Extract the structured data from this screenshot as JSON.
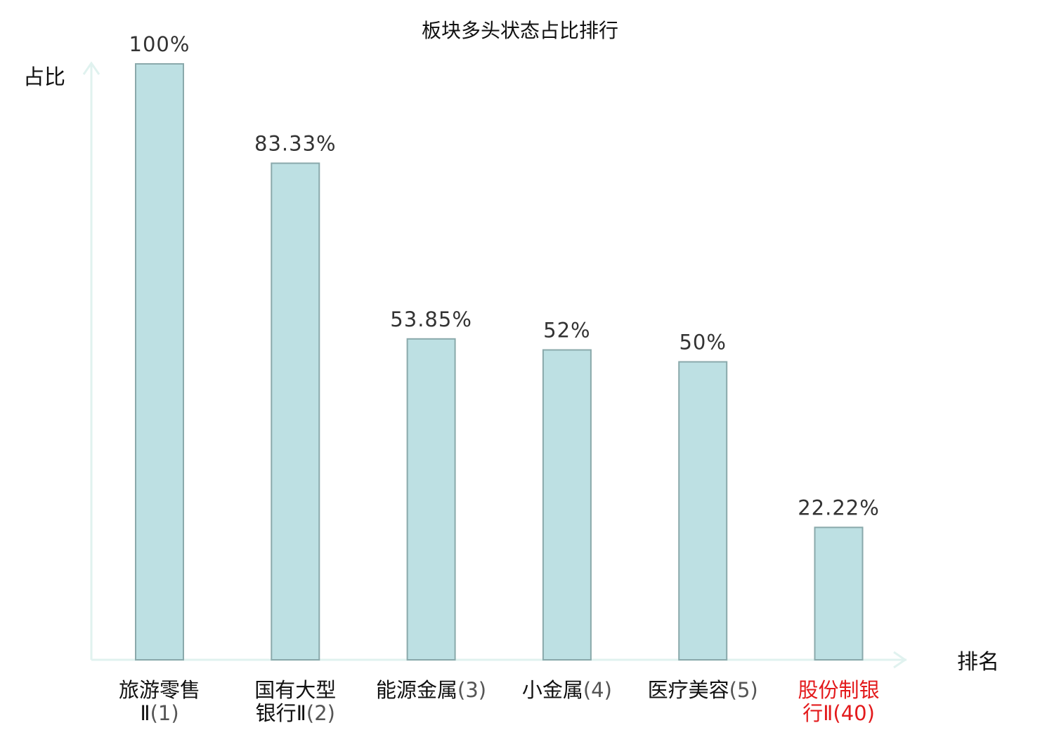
{
  "chart_data": {
    "type": "bar",
    "title": "板块多头状态占比排行",
    "ylabel": "占比",
    "xlabel": "排名",
    "ylim": [
      0,
      100
    ],
    "grid": false,
    "bar_color": "#bde0e3",
    "bar_edge_color": "#8aa9ab",
    "axis_color": "#e0f2ef",
    "highlight_color": "#e31a1c",
    "label_color": "#111111",
    "categories": [
      {
        "name_lines": [
          "旅游零售",
          "Ⅱ"
        ],
        "rank": "(1)",
        "highlight": false
      },
      {
        "name_lines": [
          "国有大型",
          "银行Ⅱ"
        ],
        "rank": "(2)",
        "highlight": false
      },
      {
        "name_lines": [
          "能源金属"
        ],
        "rank": "(3)",
        "highlight": false
      },
      {
        "name_lines": [
          "小金属"
        ],
        "rank": "(4)",
        "highlight": false
      },
      {
        "name_lines": [
          "医疗美容"
        ],
        "rank": "(5)",
        "highlight": false
      },
      {
        "name_lines": [
          "股份制银",
          "行Ⅱ"
        ],
        "rank": "(40)",
        "highlight": true
      }
    ],
    "values": [
      100,
      83.33,
      53.85,
      52,
      50,
      22.22
    ],
    "value_labels": [
      "100%",
      "83.33%",
      "53.85%",
      "52%",
      "50%",
      "22.22%"
    ]
  }
}
